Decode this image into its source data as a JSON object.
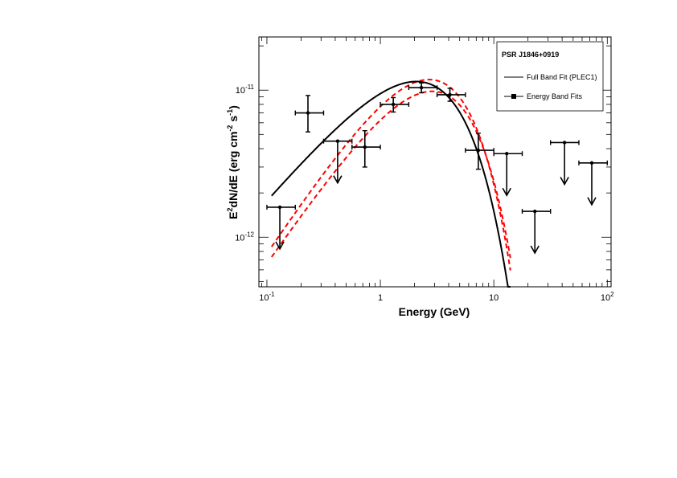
{
  "chart_data": {
    "type": "scatter",
    "title": "",
    "xlabel": "Energy (GeV)",
    "ylabel_parts": {
      "e": "E",
      "sup2": "2",
      "dnde": "dN/dE (erg cm",
      "supm2": "-2",
      "s": " s",
      "supm1": "-1",
      "close": ")"
    },
    "x_scale": "log",
    "y_scale": "log",
    "xlim": [
      0.085,
      108
    ],
    "ylim": [
      4.6e-13,
      2.3e-11
    ],
    "x_ticks": [
      {
        "base": "10",
        "exp": "-1"
      },
      {
        "base": "1",
        "exp": ""
      },
      {
        "base": "10",
        "exp": ""
      },
      {
        "base": "10",
        "exp": "2"
      }
    ],
    "y_ticks": [
      {
        "base": "10",
        "exp": "-12"
      },
      {
        "base": "10",
        "exp": "-11"
      }
    ],
    "legend": {
      "position": "top-right",
      "title": "PSR J1846+0919",
      "entries": [
        {
          "label": "Full Band Fit (PLEC1)",
          "style": "line"
        },
        {
          "label": "Energy Band Fits",
          "style": "marker-line"
        }
      ]
    },
    "series": [
      {
        "name": "Energy Band Fits",
        "points": [
          {
            "x": 0.13,
            "y": 1.6e-12,
            "xlo": 0.1,
            "xhi": 0.178,
            "upper_limit": true
          },
          {
            "x": 0.23,
            "y": 7e-12,
            "xlo": 0.178,
            "xhi": 0.316,
            "ylo": 5.2e-12,
            "yhi": 9.2e-12
          },
          {
            "x": 0.42,
            "y": 4.5e-12,
            "xlo": 0.316,
            "xhi": 0.562,
            "upper_limit": true
          },
          {
            "x": 0.73,
            "y": 4.1e-12,
            "xlo": 0.562,
            "xhi": 1.0,
            "ylo": 3e-12,
            "yhi": 5.3e-12
          },
          {
            "x": 1.3,
            "y": 8e-12,
            "xlo": 1.0,
            "xhi": 1.78,
            "ylo": 7.1e-12,
            "yhi": 8.9e-12
          },
          {
            "x": 2.3,
            "y": 1.04e-11,
            "xlo": 1.78,
            "xhi": 3.16,
            "ylo": 9.6e-12,
            "yhi": 1.12e-11
          },
          {
            "x": 4.1,
            "y": 9.3e-12,
            "xlo": 3.16,
            "xhi": 5.62,
            "ylo": 8.4e-12,
            "yhi": 1.03e-11
          },
          {
            "x": 7.3,
            "y": 3.9e-12,
            "xlo": 5.62,
            "xhi": 10.0,
            "ylo": 2.9e-12,
            "yhi": 5.1e-12
          },
          {
            "x": 13.0,
            "y": 3.7e-12,
            "xlo": 10.0,
            "xhi": 17.8,
            "upper_limit": true
          },
          {
            "x": 23.0,
            "y": 1.5e-12,
            "xlo": 17.8,
            "xhi": 31.6,
            "upper_limit": true
          },
          {
            "x": 42.0,
            "y": 4.4e-12,
            "xlo": 31.6,
            "xhi": 56.2,
            "upper_limit": true
          },
          {
            "x": 73.0,
            "y": 3.2e-12,
            "xlo": 56.2,
            "xhi": 100.0,
            "upper_limit": true
          }
        ]
      },
      {
        "name": "Full Band Fit (PLEC1)",
        "model": {
          "norm": 1.105e-11,
          "index": 1.1,
          "cutoff": 2.3,
          "pivot": 2.7
        },
        "style": {
          "color": "#000000",
          "dash": "solid"
        }
      },
      {
        "band_upper": {
          "norm": 1.18e-11,
          "index": 0.83,
          "cutoff": 2.3,
          "pivot": 2.7
        },
        "band_lower": {
          "norm": 9.8e-12,
          "index": 0.87,
          "cutoff": 2.53,
          "pivot": 2.7
        },
        "style": {
          "color": "#ff0000",
          "dash": "dashed"
        }
      }
    ],
    "curve_x_range": [
      0.11,
      14.0
    ]
  }
}
